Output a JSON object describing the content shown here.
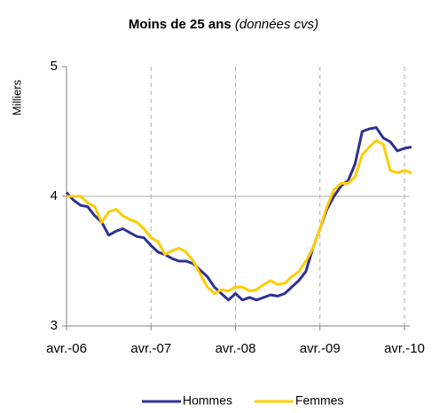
{
  "chart_data": {
    "type": "line",
    "title": "Moins de 25 ans",
    "subtitle": "(données cvs)",
    "y_label": "Milliers",
    "categories": [
      "avr.-06",
      null,
      null,
      null,
      null,
      null,
      null,
      null,
      null,
      null,
      null,
      null,
      "avr.-07",
      null,
      null,
      null,
      null,
      null,
      null,
      null,
      null,
      null,
      null,
      null,
      "avr.-08",
      null,
      null,
      null,
      null,
      null,
      null,
      null,
      null,
      null,
      null,
      null,
      "avr.-09",
      null,
      null,
      null,
      null,
      null,
      null,
      null,
      null,
      null,
      null,
      null,
      "avr.-10",
      null
    ],
    "series": [
      {
        "name": "Hommes",
        "color": "#2e3192",
        "values": [
          4.03,
          3.97,
          3.93,
          3.92,
          3.85,
          3.8,
          3.7,
          3.73,
          3.75,
          3.72,
          3.69,
          3.68,
          3.62,
          3.57,
          3.55,
          3.52,
          3.5,
          3.5,
          3.48,
          3.43,
          3.38,
          3.3,
          3.25,
          3.2,
          3.25,
          3.2,
          3.22,
          3.2,
          3.22,
          3.24,
          3.23,
          3.25,
          3.3,
          3.35,
          3.42,
          3.6,
          3.75,
          3.9,
          4.0,
          4.08,
          4.12,
          4.25,
          4.5,
          4.52,
          4.53,
          4.45,
          4.42,
          4.35,
          4.37,
          4.38
        ]
      },
      {
        "name": "Femmes",
        "color": "#ffcc00",
        "values": [
          4.0,
          4.0,
          4.0,
          3.95,
          3.92,
          3.8,
          3.88,
          3.9,
          3.85,
          3.82,
          3.8,
          3.75,
          3.68,
          3.65,
          3.55,
          3.58,
          3.6,
          3.57,
          3.5,
          3.4,
          3.3,
          3.25,
          3.28,
          3.27,
          3.3,
          3.3,
          3.27,
          3.28,
          3.32,
          3.35,
          3.32,
          3.33,
          3.38,
          3.42,
          3.5,
          3.6,
          3.75,
          3.92,
          4.05,
          4.1,
          4.1,
          4.15,
          4.32,
          4.38,
          4.43,
          4.4,
          4.2,
          4.18,
          4.2,
          4.18
        ]
      }
    ],
    "ylim": [
      3,
      5
    ],
    "yticks": [
      3,
      4,
      5
    ],
    "grid": true,
    "legend": "bottom"
  }
}
